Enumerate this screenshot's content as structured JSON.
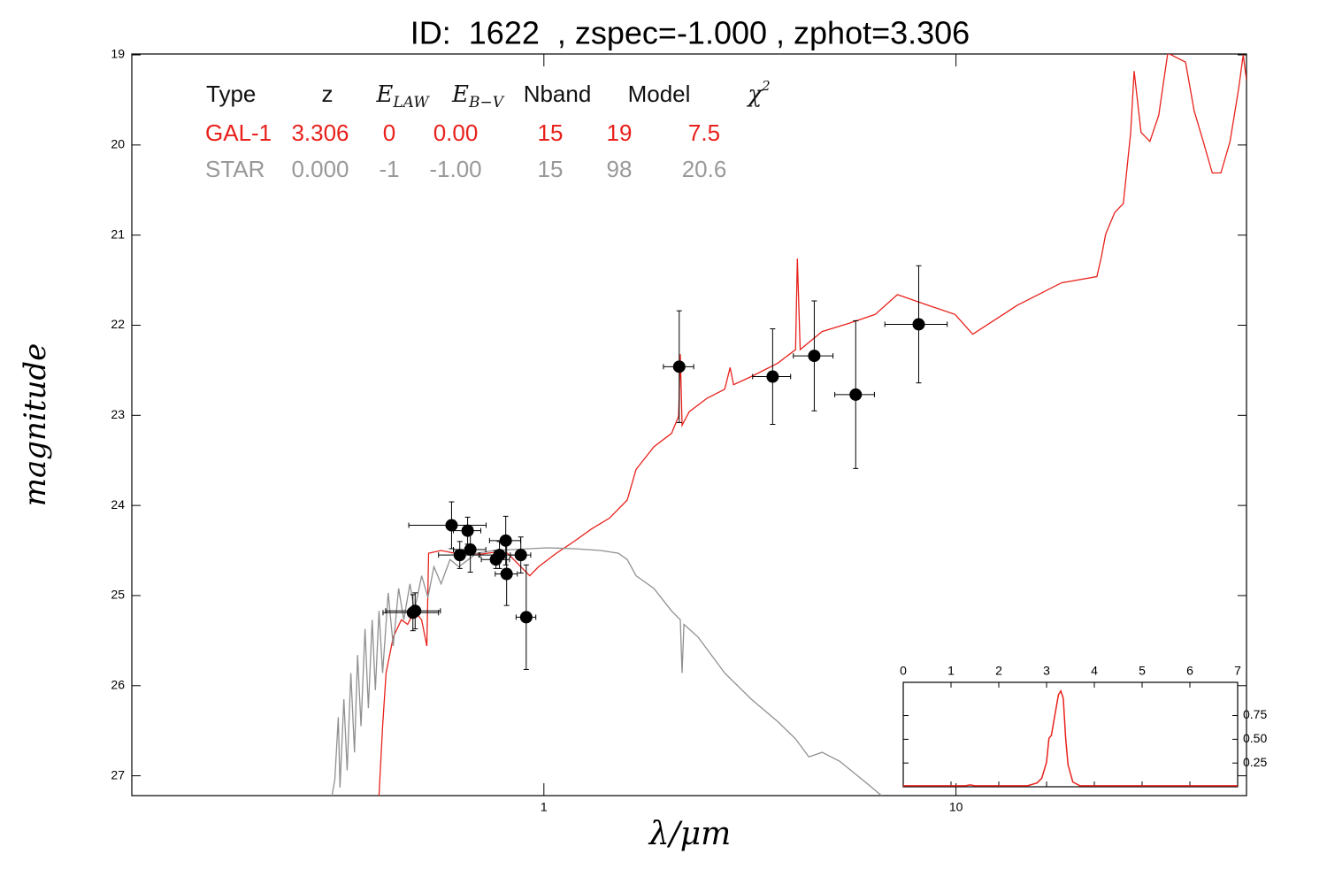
{
  "chart_data": {
    "type": "scatter",
    "title": "ID:  1622  , zspec=-1.000 , zphot=3.306",
    "xlabel": "λ/μm",
    "ylabel": "magnitude",
    "xscale": "log",
    "xlim": [
      0.1,
      50.7
    ],
    "ylim": [
      27.22,
      18.99
    ],
    "xticks": [
      1,
      10
    ],
    "yticks": [
      19,
      20,
      21,
      22,
      23,
      24,
      25,
      26,
      27
    ],
    "points": {
      "color": "#000000",
      "x": [
        0.481,
        0.487,
        0.597,
        0.625,
        0.653,
        0.663,
        0.765,
        0.78,
        0.808,
        0.812,
        0.879,
        0.906,
        2.13,
        3.59,
        4.53,
        5.71,
        8.12
      ],
      "values": [
        25.19,
        25.17,
        24.22,
        24.55,
        24.28,
        24.49,
        24.6,
        24.55,
        24.39,
        24.76,
        24.55,
        25.24,
        22.46,
        22.57,
        22.34,
        22.77,
        21.99
      ],
      "xerr": [
        0.074,
        0.074,
        0.127,
        0.07,
        0.05,
        0.06,
        0.06,
        0.08,
        0.07,
        0.05,
        0.05,
        0.05,
        0.18,
        0.38,
        0.5,
        0.63,
        1.4
      ],
      "yerr": [
        0.2,
        0.2,
        0.26,
        0.15,
        0.15,
        0.25,
        0.1,
        0.15,
        0.27,
        0.35,
        0.2,
        0.58,
        0.62,
        0.53,
        0.61,
        0.82,
        0.65
      ]
    },
    "models": [
      {
        "color": "#e8211b",
        "x": [
          0.398,
          0.406,
          0.414,
          0.431,
          0.451,
          0.467,
          0.485,
          0.505,
          0.52,
          0.525,
          0.563,
          0.607,
          0.653,
          0.703,
          0.758,
          0.816,
          0.879,
          0.924,
          0.971,
          1.072,
          1.183,
          1.306,
          1.443,
          1.593,
          1.674,
          1.849,
          2.041,
          2.123,
          2.143,
          2.164,
          2.253,
          2.488,
          2.747,
          2.831,
          2.886,
          3.186,
          3.697,
          4.082,
          4.122,
          4.188,
          4.733,
          5.495,
          6.368,
          7.21,
          8.58,
          9.95,
          10.98,
          14.07,
          18.03,
          21.98,
          22.54,
          23.08,
          24.27,
          25.48,
          26.55,
          27.06,
          28.13,
          29.55,
          31.05,
          32.66,
          36.06,
          37.84,
          39.81,
          41.88,
          43.95,
          46.24,
          48.53,
          49.77,
          50.7
        ],
        "values": [
          27.22,
          26.45,
          25.86,
          25.46,
          25.27,
          25.32,
          25.17,
          25.27,
          25.56,
          24.53,
          24.5,
          24.53,
          24.53,
          24.54,
          24.52,
          24.53,
          24.68,
          24.78,
          24.68,
          24.53,
          24.4,
          24.26,
          24.14,
          23.94,
          23.6,
          23.35,
          23.2,
          23.01,
          22.32,
          23.11,
          22.96,
          22.81,
          22.71,
          22.47,
          22.66,
          22.57,
          22.42,
          22.27,
          21.26,
          22.27,
          22.07,
          21.98,
          21.88,
          21.66,
          21.78,
          21.88,
          22.1,
          21.78,
          21.53,
          21.46,
          21.24,
          20.99,
          20.75,
          20.65,
          19.86,
          19.18,
          19.86,
          19.96,
          19.67,
          18.98,
          19.08,
          19.62,
          19.96,
          20.31,
          20.31,
          19.96,
          19.37,
          19.0,
          19.28
        ]
      },
      {
        "color": "#909090",
        "x": [
          0.306,
          0.311,
          0.317,
          0.32,
          0.327,
          0.333,
          0.34,
          0.347,
          0.353,
          0.36,
          0.368,
          0.375,
          0.383,
          0.39,
          0.398,
          0.406,
          0.419,
          0.431,
          0.444,
          0.457,
          0.473,
          0.485,
          0.505,
          0.523,
          0.541,
          0.563,
          0.592,
          0.622,
          0.687,
          0.758,
          0.837,
          0.924,
          1.02,
          1.183,
          1.373,
          1.516,
          1.593,
          1.674,
          1.849,
          2.041,
          2.143,
          2.164,
          2.187,
          2.366,
          2.747,
          3.186,
          3.697,
          4.082,
          4.395,
          4.733,
          5.224,
          6.063,
          6.594
        ],
        "values": [
          27.22,
          27.04,
          26.35,
          27.13,
          26.15,
          26.94,
          25.86,
          26.74,
          25.66,
          26.45,
          25.37,
          26.25,
          25.27,
          26.05,
          25.17,
          25.86,
          24.97,
          25.56,
          24.92,
          25.27,
          24.87,
          25.17,
          24.78,
          25.02,
          24.68,
          24.87,
          24.6,
          24.68,
          24.53,
          24.5,
          24.49,
          24.48,
          24.47,
          24.48,
          24.5,
          24.53,
          24.6,
          24.78,
          24.92,
          25.17,
          25.27,
          25.86,
          25.32,
          25.46,
          25.86,
          26.15,
          26.4,
          26.59,
          26.79,
          26.74,
          26.84,
          27.08,
          27.22
        ]
      }
    ],
    "table": {
      "header": [
        {
          "main": "Type"
        },
        {
          "main": "z"
        },
        {
          "main": "E",
          "sub": "LAW"
        },
        {
          "main": "E",
          "sub": "B−V"
        },
        {
          "main": "Nband"
        },
        {
          "main": "Model"
        },
        {
          "main": "χ",
          "sup": "2"
        }
      ],
      "rows": [
        {
          "color": "#e8211b",
          "cells": [
            "GAL-1",
            "3.306",
            "0",
            "0.00",
            "15",
            "19",
            "7.5"
          ]
        },
        {
          "color": "#999999",
          "cells": [
            "STAR",
            "0.000",
            "-1",
            "-1.00",
            "15",
            "98",
            "20.6"
          ]
        }
      ]
    },
    "inset": {
      "type": "line",
      "color": "#e8211b",
      "xlim": [
        0,
        7
      ],
      "ylim": [
        0,
        1.1
      ],
      "xticks": [
        0,
        1,
        2,
        3,
        4,
        5,
        6,
        7
      ],
      "yticks": [
        0.25,
        {
          "value": 0.5,
          "label": "0.50"
        },
        0.75
      ],
      "x": [
        0,
        1.3,
        1.4,
        1.5,
        2.6,
        2.8,
        2.9,
        3.0,
        3.05,
        3.1,
        3.2,
        3.25,
        3.3,
        3.35,
        3.4,
        3.45,
        3.55,
        3.7,
        7
      ],
      "values": [
        0.01,
        0.01,
        0.02,
        0.01,
        0.01,
        0.04,
        0.09,
        0.26,
        0.51,
        0.54,
        0.83,
        0.97,
        1.01,
        0.93,
        0.51,
        0.23,
        0.05,
        0.01,
        0.01
      ]
    }
  }
}
